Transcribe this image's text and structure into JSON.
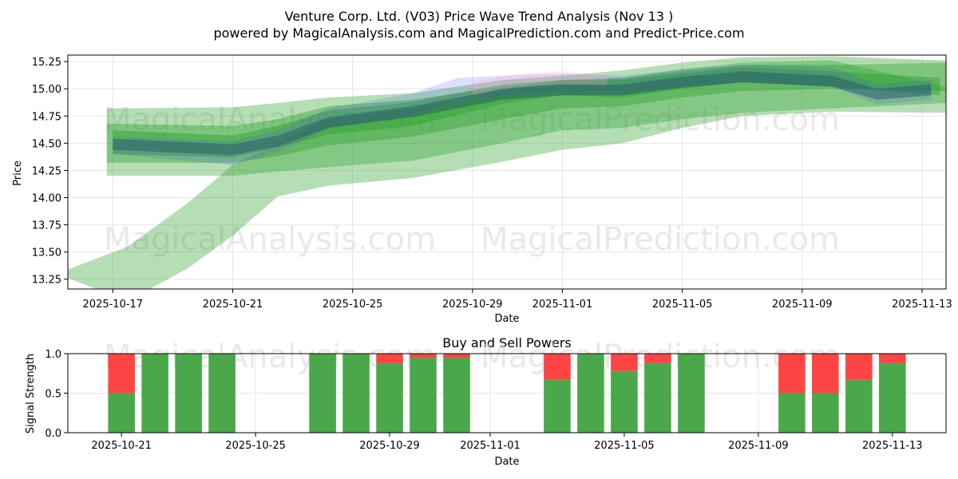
{
  "title_line1": "Venture Corp. Ltd. (V03) Price Wave Trend Analysis (Nov 13 )",
  "title_line2": "powered by MagicalAnalysis.com and MagicalPrediction.com and Predict-Price.com",
  "watermarks": [
    "MagicalAnalysis.com",
    "MagicalPrediction.com"
  ],
  "colors": {
    "green": "#2ca02c",
    "blue": "#4a4aff",
    "pink": "#ff9ec8",
    "red": "#ff4444",
    "bar_green": "#4aa84a",
    "bar_red": "#ff4444"
  },
  "chart_data": [
    {
      "type": "area",
      "title": "",
      "xlabel": "Date",
      "ylabel": "Price",
      "ylim": [
        13.16,
        15.31
      ],
      "xlim": [
        -1.5,
        27.8
      ],
      "x_ticks": [
        {
          "x": 0,
          "label": "2025-10-17"
        },
        {
          "x": 4,
          "label": "2025-10-21"
        },
        {
          "x": 8,
          "label": "2025-10-25"
        },
        {
          "x": 12,
          "label": "2025-10-29"
        },
        {
          "x": 15,
          "label": "2025-11-01"
        },
        {
          "x": 19,
          "label": "2025-11-05"
        },
        {
          "x": 23,
          "label": "2025-11-09"
        },
        {
          "x": 27,
          "label": "2025-11-13"
        }
      ],
      "y_ticks": [
        13.25,
        13.5,
        13.75,
        14.0,
        14.25,
        14.5,
        14.75,
        15.0,
        15.25
      ],
      "series": [
        {
          "name": "wide-band-upper",
          "color": "green",
          "x": [
            -0.2,
            4,
            5.5,
            7.2,
            10,
            13,
            15,
            17,
            19,
            21,
            24,
            27.8
          ],
          "upper": [
            14.82,
            14.83,
            14.87,
            14.92,
            14.96,
            15.08,
            15.12,
            15.17,
            15.24,
            15.29,
            15.3,
            15.26
          ],
          "lower": [
            14.2,
            14.2,
            14.24,
            14.28,
            14.34,
            14.5,
            14.62,
            14.64,
            14.72,
            14.78,
            14.82,
            14.87
          ],
          "opacity": 0.35
        },
        {
          "name": "falling-band",
          "color": "green",
          "x": [
            -1.5,
            0.5,
            2.5,
            4,
            5.5,
            7.2,
            10,
            13,
            15,
            17,
            19,
            21,
            24,
            27.8
          ],
          "upper": [
            13.34,
            13.55,
            13.95,
            14.3,
            14.5,
            14.72,
            14.82,
            14.98,
            15.08,
            15.1,
            15.18,
            15.24,
            15.26,
            15.02
          ],
          "lower": [
            13.26,
            13.05,
            13.35,
            13.65,
            14.01,
            14.11,
            14.18,
            14.33,
            14.44,
            14.5,
            14.64,
            14.75,
            14.79,
            14.78
          ],
          "opacity": 0.35
        },
        {
          "name": "mid-band",
          "color": "green",
          "x": [
            -0.2,
            4,
            5.5,
            7.2,
            10,
            13,
            15,
            17,
            19,
            21,
            24,
            27.8
          ],
          "upper": [
            14.68,
            14.66,
            14.72,
            14.84,
            14.9,
            15.02,
            15.08,
            15.1,
            15.16,
            15.22,
            15.22,
            15.24
          ],
          "lower": [
            14.32,
            14.32,
            14.38,
            14.48,
            14.56,
            14.72,
            14.82,
            14.84,
            14.92,
            14.98,
            15.0,
            14.98
          ],
          "opacity": 0.4
        },
        {
          "name": "inner-band",
          "color": "green",
          "x": [
            0,
            4,
            5.5,
            7.2,
            10,
            13,
            15,
            17,
            19,
            21,
            24,
            27.6
          ],
          "upper": [
            14.62,
            14.57,
            14.66,
            14.8,
            14.88,
            15.04,
            15.08,
            15.08,
            15.14,
            15.2,
            15.16,
            15.1
          ],
          "lower": [
            14.4,
            14.37,
            14.46,
            14.58,
            14.66,
            14.86,
            14.94,
            14.92,
            15.0,
            15.06,
            15.02,
            14.94
          ],
          "opacity": 0.45
        },
        {
          "name": "blue-band",
          "color": "blue",
          "x": [
            0,
            4,
            5.5,
            7.2,
            10,
            11.5,
            13,
            15,
            17,
            19,
            21,
            24,
            25.5,
            27.3
          ],
          "upper": [
            14.56,
            14.52,
            14.62,
            14.82,
            14.96,
            15.1,
            15.12,
            15.14,
            15.12,
            15.18,
            15.22,
            15.2,
            15.04,
            15.08
          ],
          "lower": [
            14.4,
            14.3,
            14.42,
            14.64,
            14.76,
            14.9,
            14.94,
            14.98,
            14.96,
            15.02,
            15.06,
            15.02,
            14.86,
            14.9
          ],
          "opacity": 0.18
        },
        {
          "name": "pink-band",
          "color": "pink",
          "x": [
            12,
            13.5,
            15,
            16.5
          ],
          "upper": [
            15.06,
            15.14,
            15.16,
            15.12
          ],
          "lower": [
            14.94,
            15.02,
            15.04,
            15.02
          ],
          "opacity": 0.25
        },
        {
          "name": "core-line",
          "color": "dark",
          "x": [
            0,
            4,
            5.5,
            7.2,
            10,
            13,
            15,
            17,
            19,
            21,
            24,
            25.5,
            27.3
          ],
          "upper": [
            14.54,
            14.49,
            14.57,
            14.74,
            14.84,
            15.0,
            15.04,
            15.04,
            15.11,
            15.16,
            15.12,
            15.0,
            15.04
          ],
          "lower": [
            14.44,
            14.39,
            14.47,
            14.64,
            14.74,
            14.9,
            14.94,
            14.94,
            15.01,
            15.06,
            15.02,
            14.9,
            14.94
          ],
          "opacity": 0.55
        }
      ]
    },
    {
      "type": "bar",
      "title": "Buy and Sell Powers",
      "xlabel": "Date",
      "ylabel": "Signal Strength",
      "ylim": [
        0,
        1
      ],
      "xlim": [
        -1.6,
        24.6
      ],
      "x_ticks": [
        {
          "x": 0,
          "label": "2025-10-21"
        },
        {
          "x": 4,
          "label": "2025-10-25"
        },
        {
          "x": 8,
          "label": "2025-10-29"
        },
        {
          "x": 11,
          "label": "2025-11-01"
        },
        {
          "x": 15,
          "label": "2025-11-05"
        },
        {
          "x": 19,
          "label": "2025-11-09"
        },
        {
          "x": 23,
          "label": "2025-11-13"
        }
      ],
      "y_ticks": [
        "0.0",
        "0.5",
        "1.0"
      ],
      "categories": [
        0,
        1,
        2,
        3,
        6,
        7,
        8,
        9,
        10,
        13,
        14,
        15,
        16,
        17,
        20,
        21,
        22,
        23
      ],
      "buy": [
        0.5,
        1.0,
        1.0,
        1.0,
        1.0,
        1.0,
        0.88,
        0.95,
        0.95,
        0.67,
        1.0,
        0.78,
        0.88,
        1.0,
        0.5,
        0.5,
        0.67,
        0.88
      ],
      "sell": [
        0.5,
        0.0,
        0.0,
        0.0,
        0.0,
        0.0,
        0.12,
        0.05,
        0.05,
        0.33,
        0.0,
        0.22,
        0.12,
        0.0,
        0.5,
        0.5,
        0.33,
        0.12
      ]
    }
  ]
}
